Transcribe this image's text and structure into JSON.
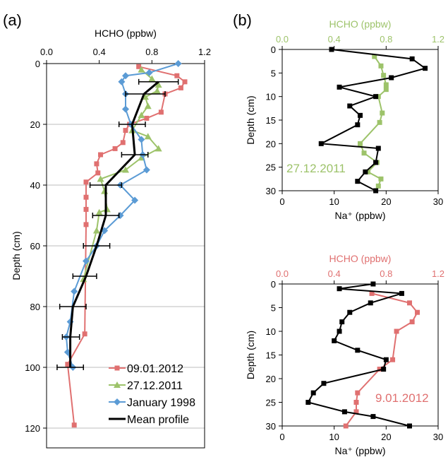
{
  "chart_data": [
    {
      "panel_label": "(a)",
      "type": "line",
      "xlabel_top": "HCHO (ppbw)",
      "ylabel": "Depth (cm)",
      "x_axis": "top",
      "xlim": [
        0,
        1.2
      ],
      "ylim": [
        0,
        125
      ],
      "y_inverted": true,
      "xticks": [
        0,
        0.4,
        0.8,
        1.2
      ],
      "xtick_labels": [
        "0.0",
        "0.4",
        "0.8",
        "1.2"
      ],
      "yticks": [
        0,
        20,
        40,
        60,
        80,
        100,
        120
      ],
      "ytick_labels": [
        "0",
        "20",
        "40",
        "60",
        "80",
        "100",
        "120"
      ],
      "grid": "horizontal",
      "legend_position": "bottom-right",
      "series": [
        {
          "name": "09.01.2012",
          "color": "#e07070",
          "marker": "square",
          "points": [
            [
              0.7,
              1
            ],
            [
              0.99,
              4
            ],
            [
              1.05,
              6
            ],
            [
              1.02,
              8
            ],
            [
              0.9,
              10
            ],
            [
              0.87,
              16
            ],
            [
              0.76,
              18
            ],
            [
              0.63,
              20
            ],
            [
              0.6,
              22
            ],
            [
              0.58,
              26
            ],
            [
              0.52,
              28
            ],
            [
              0.41,
              30
            ],
            [
              0.38,
              33
            ],
            [
              0.39,
              36
            ],
            [
              0.3,
              39
            ],
            [
              0.3,
              44
            ],
            [
              0.3,
              48
            ],
            [
              0.3,
              53
            ],
            [
              0.29,
              89
            ],
            [
              0.16,
              99
            ],
            [
              0.21,
              119
            ]
          ]
        },
        {
          "name": "27.12.2011",
          "color": "#9dc36a",
          "marker": "triangle",
          "points": [
            [
              0.72,
              2
            ],
            [
              0.8,
              5
            ],
            [
              0.85,
              7
            ],
            [
              0.84,
              9
            ],
            [
              0.75,
              11
            ],
            [
              0.77,
              14
            ],
            [
              0.72,
              17
            ],
            [
              0.65,
              22
            ],
            [
              0.77,
              24
            ],
            [
              0.85,
              28
            ],
            [
              0.72,
              31
            ],
            [
              0.6,
              35
            ],
            [
              0.41,
              38
            ],
            [
              0.44,
              42
            ],
            [
              0.46,
              48
            ],
            [
              0.4,
              49
            ],
            [
              0.38,
              55
            ],
            [
              0.28,
              71
            ]
          ]
        },
        {
          "name": "January 1998",
          "color": "#5b9bd5",
          "marker": "diamond",
          "points": [
            [
              1.0,
              0
            ],
            [
              0.78,
              3
            ],
            [
              0.6,
              4
            ],
            [
              0.57,
              6
            ],
            [
              0.6,
              10
            ],
            [
              0.6,
              15
            ],
            [
              0.64,
              20
            ],
            [
              0.72,
              25
            ],
            [
              0.73,
              30
            ],
            [
              0.76,
              35
            ],
            [
              0.56,
              40
            ],
            [
              0.67,
              45
            ],
            [
              0.56,
              50
            ],
            [
              0.44,
              55
            ],
            [
              0.38,
              60
            ],
            [
              0.3,
              65
            ],
            [
              0.21,
              75
            ],
            [
              0.18,
              85
            ],
            [
              0.15,
              90
            ],
            [
              0.16,
              95
            ],
            [
              0.2,
              100
            ]
          ]
        },
        {
          "name": "Mean profile",
          "color": "#000000",
          "marker": "none",
          "points": [
            [
              0.85,
              6
            ],
            [
              0.74,
              10
            ],
            [
              0.65,
              20
            ],
            [
              0.67,
              30
            ],
            [
              0.45,
              40
            ],
            [
              0.45,
              50
            ],
            [
              0.38,
              60
            ],
            [
              0.3,
              70
            ],
            [
              0.2,
              80
            ],
            [
              0.18,
              90
            ],
            [
              0.18,
              100
            ]
          ],
          "error_bars": [
            [
              0.7,
              1.0
            ],
            [
              0.6,
              0.9
            ],
            [
              0.55,
              0.75
            ],
            [
              0.57,
              0.77
            ],
            [
              0.33,
              0.57
            ],
            [
              0.35,
              0.55
            ],
            [
              0.28,
              0.48
            ],
            [
              0.2,
              0.38
            ],
            [
              0.1,
              0.3
            ],
            [
              0.12,
              0.25
            ],
            [
              0.08,
              0.28
            ]
          ]
        }
      ]
    },
    {
      "panel_label": "(b)",
      "type": "line",
      "xlabel_top": "HCHO (ppbw)",
      "xlabel_bottom": "Na⁺ (ppbw)",
      "ylabel": "Depth (cm)",
      "annotation": "27.12.2011",
      "annotation_color": "#9dc36a",
      "xlim_top": [
        0,
        1.2
      ],
      "xlim_bottom": [
        0,
        30
      ],
      "ylim": [
        0,
        30
      ],
      "y_inverted": true,
      "xticks_top": [
        0,
        0.4,
        0.8,
        1.2
      ],
      "xtick_labels_top": [
        "0.0",
        "0.4",
        "0.8",
        "1.2"
      ],
      "xticks_bottom": [
        0,
        10,
        20,
        30
      ],
      "xtick_labels_bottom": [
        "0",
        "10",
        "20",
        "30"
      ],
      "yticks": [
        0,
        5,
        10,
        15,
        20,
        25,
        30
      ],
      "ytick_labels": [
        "0",
        "5",
        "10",
        "15",
        "20",
        "25",
        "30"
      ],
      "series": [
        {
          "name": "HCHO",
          "axis": "top",
          "color": "#9dc36a",
          "marker": "square",
          "points": [
            [
              0.71,
              1.5
            ],
            [
              0.76,
              3.5
            ],
            [
              0.78,
              5.5
            ],
            [
              0.8,
              7.5
            ],
            [
              0.8,
              8.5
            ],
            [
              0.74,
              10
            ],
            [
              0.77,
              13.5
            ],
            [
              0.75,
              15.5
            ],
            [
              0.6,
              20
            ],
            [
              0.63,
              22
            ],
            [
              0.73,
              24
            ],
            [
              0.66,
              26
            ],
            [
              0.76,
              27.5
            ],
            [
              0.74,
              29
            ]
          ]
        },
        {
          "name": "Na⁺",
          "axis": "bottom",
          "color": "#000000",
          "marker": "square",
          "points": [
            [
              9.5,
              0
            ],
            [
              25,
              2
            ],
            [
              27.5,
              4
            ],
            [
              21,
              6
            ],
            [
              11,
              8
            ],
            [
              18,
              10
            ],
            [
              13,
              12
            ],
            [
              15,
              14
            ],
            [
              14.5,
              16
            ],
            [
              7.5,
              20
            ],
            [
              18.5,
              21
            ],
            [
              18,
              24
            ],
            [
              16,
              26
            ],
            [
              14.5,
              28
            ],
            [
              18,
              30
            ]
          ]
        }
      ]
    },
    {
      "panel_label": "",
      "type": "line",
      "xlabel_top": "HCHO (ppbw)",
      "xlabel_bottom": "Na⁺ (ppbw)",
      "ylabel": "Depth (cm)",
      "annotation": "9.01.2012",
      "annotation_color": "#e07070",
      "xlim_top": [
        0,
        1.2
      ],
      "xlim_bottom": [
        0,
        30
      ],
      "ylim": [
        0,
        30
      ],
      "y_inverted": true,
      "xticks_top": [
        0,
        0.4,
        0.8,
        1.2
      ],
      "xtick_labels_top": [
        "0.0",
        "0.4",
        "0.8",
        "1.2"
      ],
      "xticks_bottom": [
        0,
        10,
        20,
        30
      ],
      "xtick_labels_bottom": [
        "0",
        "10",
        "20",
        "30"
      ],
      "yticks": [
        0,
        5,
        10,
        15,
        20,
        25,
        30
      ],
      "ytick_labels": [
        "0",
        "5",
        "10",
        "15",
        "20",
        "25",
        "30"
      ],
      "series": [
        {
          "name": "HCHO",
          "axis": "top",
          "color": "#e07070",
          "marker": "square",
          "points": [
            [
              0.69,
              2
            ],
            [
              0.98,
              4
            ],
            [
              1.04,
              6
            ],
            [
              1.0,
              8
            ],
            [
              0.88,
              10
            ],
            [
              0.85,
              16
            ],
            [
              0.75,
              18
            ],
            [
              0.58,
              23
            ],
            [
              0.57,
              25
            ],
            [
              0.57,
              27
            ],
            [
              0.49,
              30
            ]
          ]
        },
        {
          "name": "Na⁺",
          "axis": "bottom",
          "color": "#000000",
          "marker": "square",
          "points": [
            [
              17.5,
              0
            ],
            [
              11,
              1
            ],
            [
              23,
              2
            ],
            [
              17,
              4
            ],
            [
              13,
              6
            ],
            [
              11.5,
              8
            ],
            [
              11,
              10
            ],
            [
              10,
              12
            ],
            [
              14.5,
              14
            ],
            [
              20,
              16
            ],
            [
              19.5,
              18
            ],
            [
              8,
              21
            ],
            [
              6,
              23
            ],
            [
              5,
              25
            ],
            [
              12,
              27
            ],
            [
              17.5,
              28
            ],
            [
              24.5,
              30
            ]
          ]
        }
      ]
    }
  ],
  "legend": [
    {
      "name": "09.01.2012",
      "color": "#e07070",
      "marker": "square"
    },
    {
      "name": "27.12.2011",
      "color": "#9dc36a",
      "marker": "triangle"
    },
    {
      "name": "January 1998",
      "color": "#5b9bd5",
      "marker": "diamond"
    },
    {
      "name": "Mean profile",
      "color": "#000000",
      "marker": "none"
    }
  ]
}
